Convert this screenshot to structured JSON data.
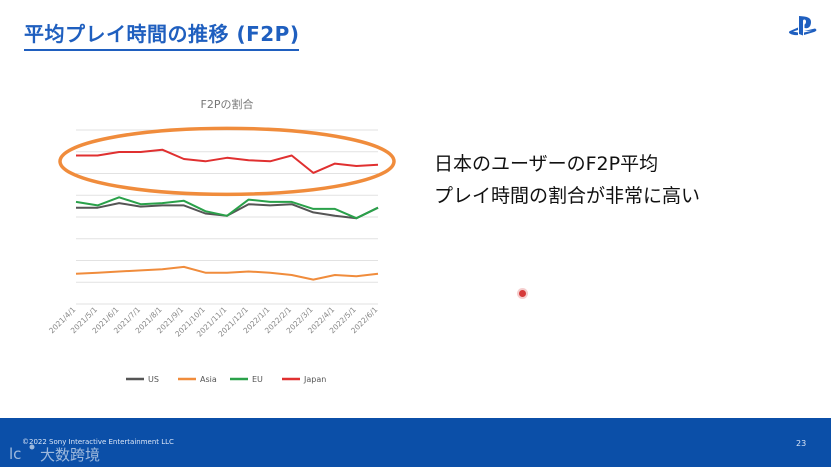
{
  "slide": {
    "title": "平均プレイ時間の推移 (F2P)",
    "callout_lines": [
      "日本のユーザーのF2P平均",
      "プレイ時間の割合が非常に高い"
    ],
    "copyright": "©2022 Sony Interactive Entertainment LLC",
    "page_number": "23",
    "watermark_text": "大数跨境",
    "logo_icon": "playstation-logo-icon"
  },
  "chart_data": {
    "type": "line",
    "title": "F2Pの割合",
    "x": [
      "2021/4/1",
      "2021/5/1",
      "2021/6/1",
      "2021/7/1",
      "2021/8/1",
      "2021/9/1",
      "2021/10/1",
      "2021/11/1",
      "2021/12/1",
      "2022/1/1",
      "2022/2/1",
      "2022/3/1",
      "2022/4/1",
      "2022/5/1",
      "2022/6/1"
    ],
    "series": [
      {
        "name": "US",
        "color": "#555555",
        "values": [
          61.5,
          61.5,
          63.5,
          62.0,
          62.5,
          62.5,
          59.0,
          58.0,
          63.0,
          62.5,
          63.0,
          59.5,
          58.0,
          57.0,
          61.5
        ]
      },
      {
        "name": "Asia",
        "color": "#f08c3c",
        "values": [
          33.0,
          33.5,
          34.0,
          34.5,
          35.0,
          36.0,
          33.5,
          33.5,
          34.0,
          33.5,
          32.5,
          30.5,
          32.5,
          32.0,
          33.0
        ]
      },
      {
        "name": "EU",
        "color": "#2aa14a",
        "values": [
          64.0,
          62.5,
          66.0,
          63.0,
          63.5,
          64.5,
          60.0,
          58.0,
          65.0,
          64.0,
          64.0,
          61.0,
          61.0,
          57.0,
          61.5
        ]
      },
      {
        "name": "Japan",
        "color": "#e03030",
        "values": [
          84.0,
          84.0,
          85.5,
          85.5,
          86.5,
          82.5,
          81.5,
          83.0,
          82.0,
          81.5,
          84.0,
          76.5,
          80.5,
          79.5,
          80.0
        ]
      }
    ],
    "ylim": [
      20,
      95
    ],
    "grid": true,
    "legend_position": "bottom",
    "highlight": {
      "series": "Japan",
      "shape": "ellipse",
      "color": "#f08c3c"
    }
  }
}
